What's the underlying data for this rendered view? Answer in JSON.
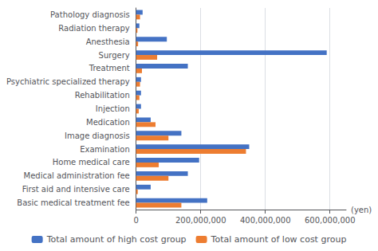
{
  "chart_data": {
    "type": "bar",
    "orientation": "horizontal",
    "categories": [
      "Basic medical treatment fee",
      "First aid and intensive care",
      "Medical administration fee",
      "Home medical care",
      "Examination",
      "Image diagnosis",
      "Medication",
      "Injection",
      "Rehabilitation",
      "Psychiatric specialized therapy",
      "Treatment",
      "Surgery",
      "Anesthesia",
      "Radiation therapy",
      "Pathology diagnosis"
    ],
    "series": [
      {
        "name": "Total amount of high cost group",
        "color": "#4472C4",
        "values": [
          220000000,
          45000000,
          160000000,
          195000000,
          350000000,
          140000000,
          45000000,
          15000000,
          15000000,
          15000000,
          160000000,
          590000000,
          95000000,
          10000000,
          20000000
        ]
      },
      {
        "name": "Total amount of low cost group",
        "color": "#ED7D31",
        "values": [
          140000000,
          5000000,
          100000000,
          70000000,
          340000000,
          100000000,
          60000000,
          8000000,
          10000000,
          12000000,
          18000000,
          65000000,
          6000000,
          4000000,
          12000000
        ]
      }
    ],
    "xlabel": "(yen)",
    "xlim": [
      0,
      650000000
    ],
    "xticks": [
      0,
      {
        "value": 200000000,
        "label": "200,000,000"
      },
      {
        "value": 400000000,
        "label": "400,000,000"
      },
      {
        "value": 600000000,
        "label": "600,000,000"
      }
    ],
    "grid": true,
    "legend": "bottom"
  }
}
